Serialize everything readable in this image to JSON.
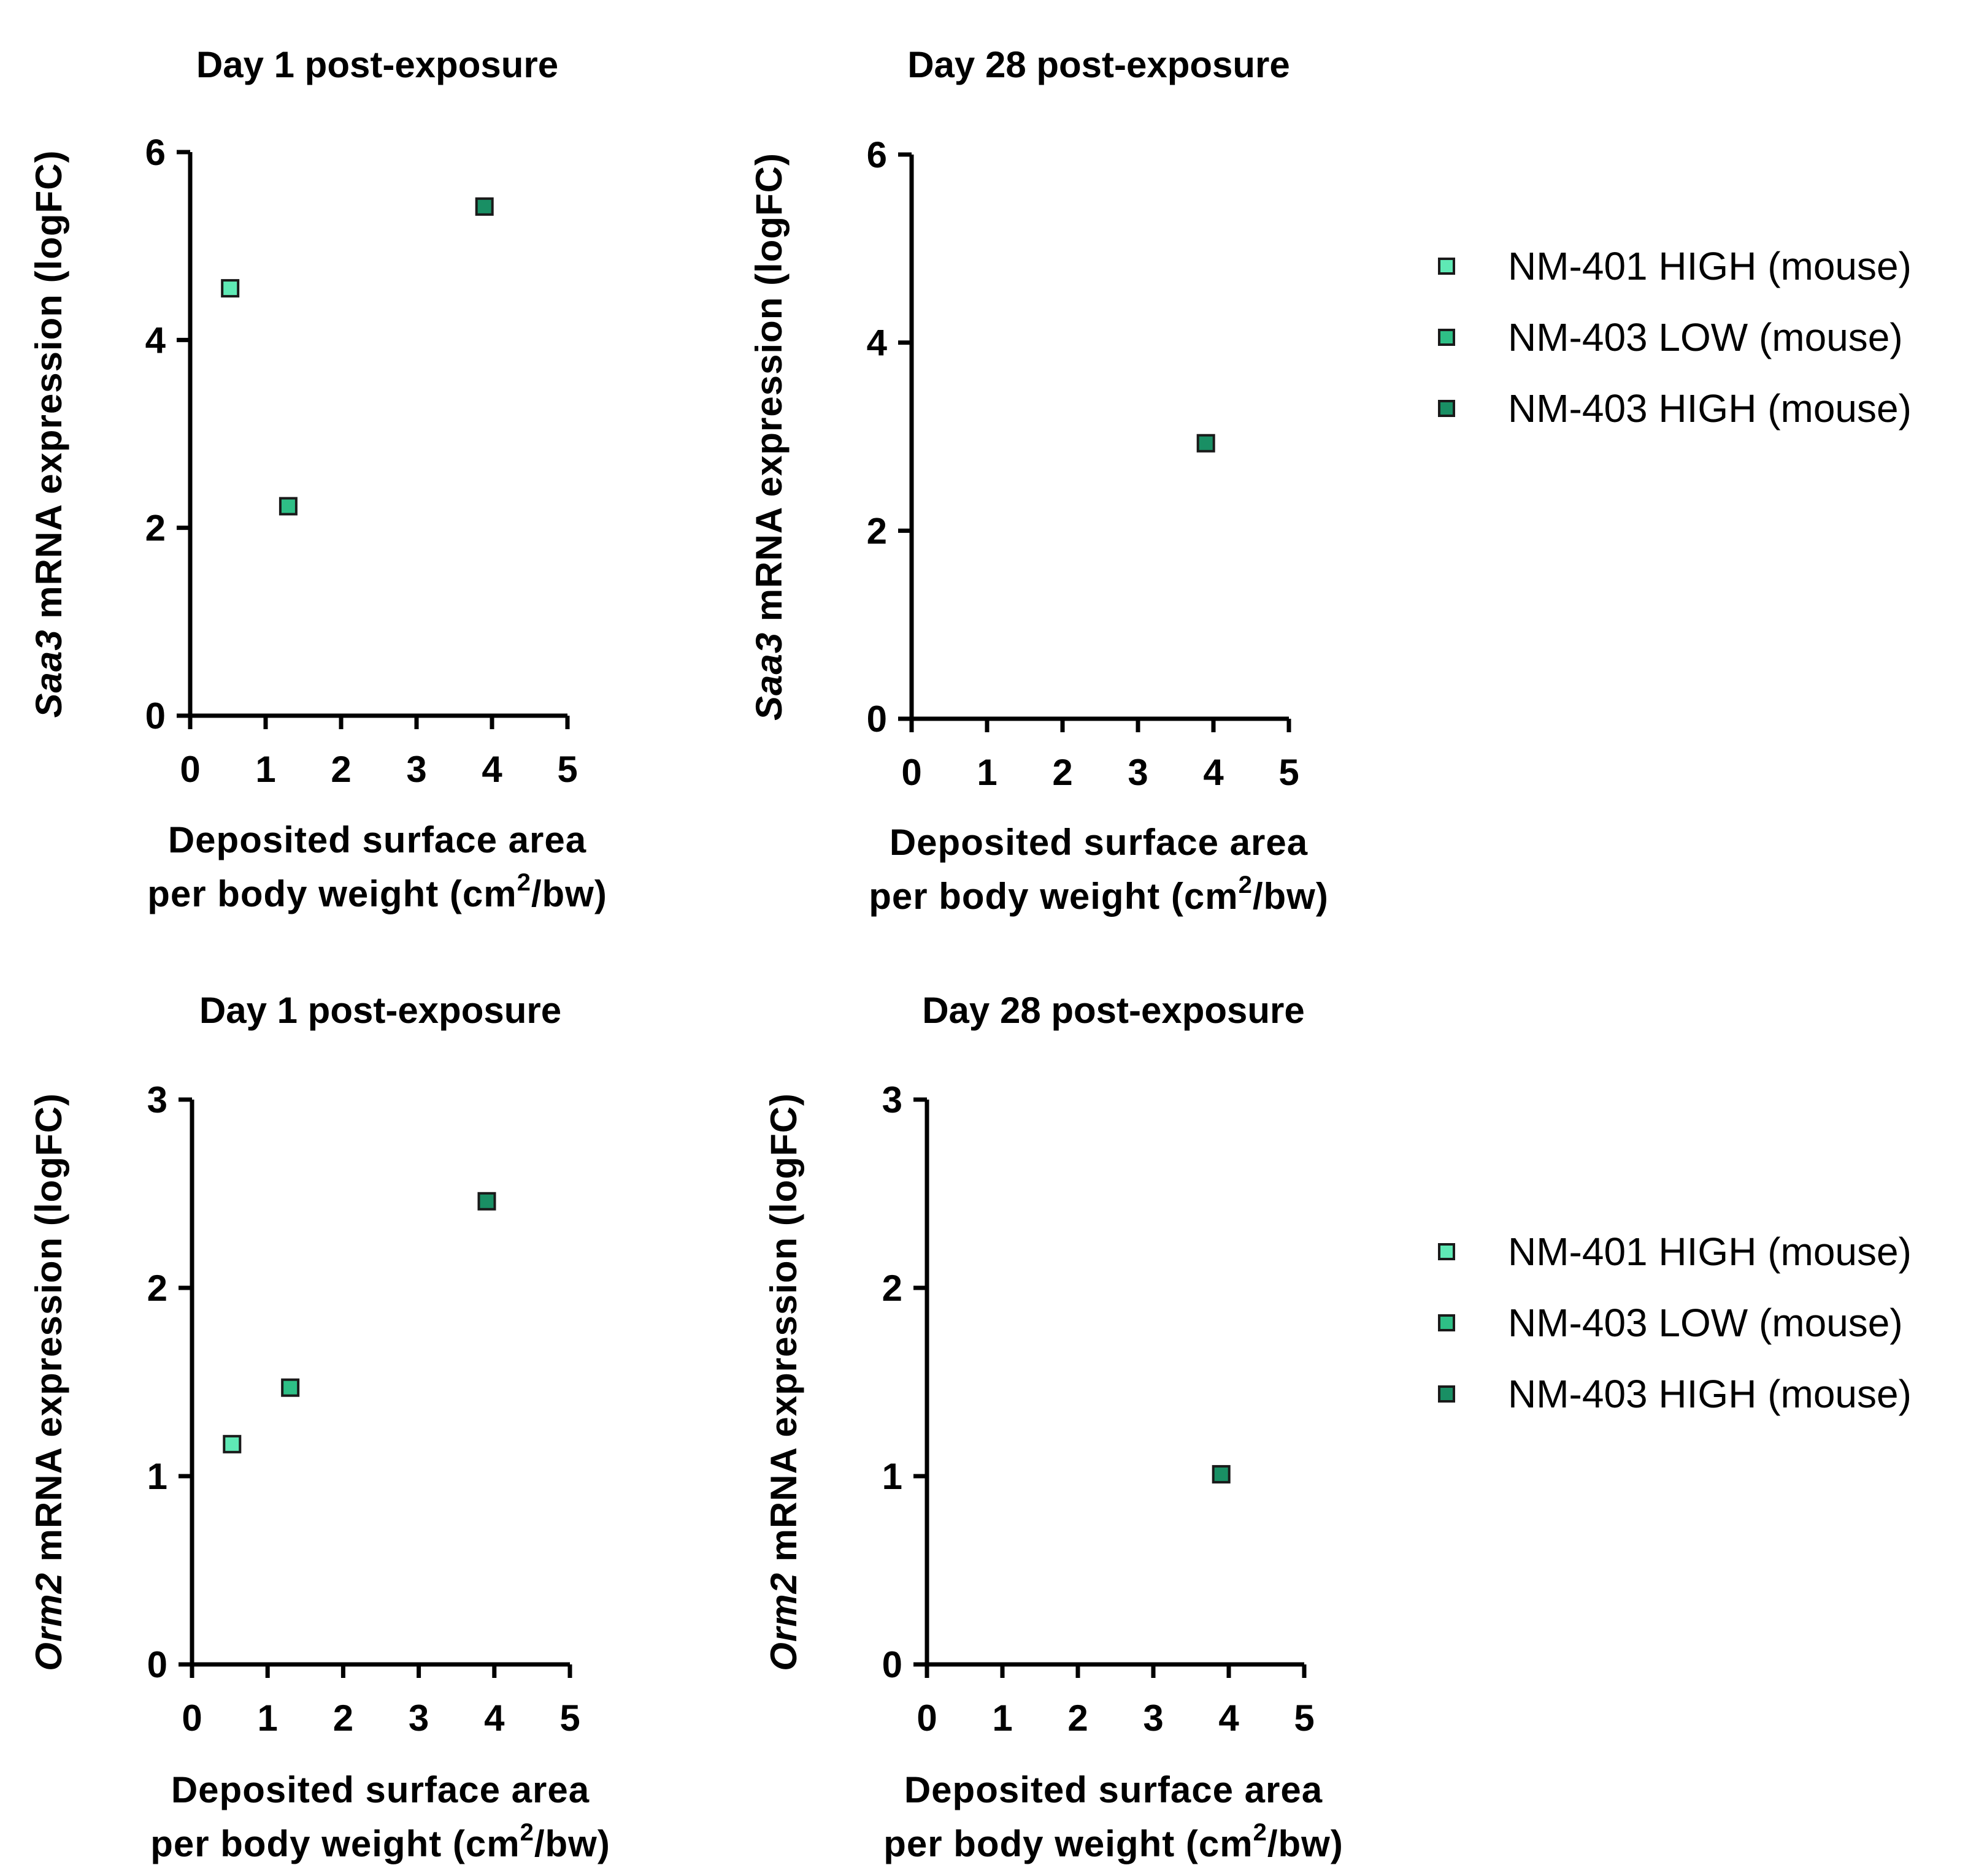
{
  "chart_data": [
    {
      "type": "scatter",
      "title": "Day 1 post-exposure",
      "ylabel_gene": "Saa3",
      "ylabel_rest": " mRNA expression (logFC)",
      "xlabel_line1": "Deposited surface area",
      "xlabel_line2_prefix": "per body weight (cm",
      "xlabel_sup": "2",
      "xlabel_line2_suffix": "/bw)",
      "xlim": [
        0,
        5
      ],
      "ylim": [
        0,
        6
      ],
      "xticks": [
        "0",
        "1",
        "2",
        "3",
        "4",
        "5"
      ],
      "yticks": [
        "0",
        "2",
        "4",
        "6"
      ],
      "series": [
        {
          "name": "NM-401 HIGH (mouse)",
          "points": [
            {
              "x": 0.53,
              "y": 4.55
            }
          ]
        },
        {
          "name": "NM-403 LOW (mouse)",
          "points": [
            {
              "x": 1.3,
              "y": 2.23
            }
          ]
        },
        {
          "name": "NM-403 HIGH (mouse)",
          "points": [
            {
              "x": 3.9,
              "y": 5.42
            }
          ]
        }
      ]
    },
    {
      "type": "scatter",
      "title": "Day 28 post-exposure",
      "ylabel_gene": "Saa3",
      "ylabel_rest": " mRNA expression (logFC)",
      "xlabel_line1": "Deposited surface area",
      "xlabel_line2_prefix": "per body weight (cm",
      "xlabel_sup": "2",
      "xlabel_line2_suffix": "/bw)",
      "xlim": [
        0,
        5
      ],
      "ylim": [
        0,
        6
      ],
      "xticks": [
        "0",
        "1",
        "2",
        "3",
        "4",
        "5"
      ],
      "yticks": [
        "0",
        "2",
        "4",
        "6"
      ],
      "series": [
        {
          "name": "NM-401 HIGH (mouse)",
          "points": []
        },
        {
          "name": "NM-403 LOW (mouse)",
          "points": []
        },
        {
          "name": "NM-403 HIGH (mouse)",
          "points": [
            {
              "x": 3.9,
              "y": 2.93
            }
          ]
        }
      ]
    },
    {
      "type": "scatter",
      "title": "Day 1 post-exposure",
      "ylabel_gene": "Orm2",
      "ylabel_rest": " mRNA expression (logFC)",
      "xlabel_line1": "Deposited surface area",
      "xlabel_line2_prefix": "per body weight (cm",
      "xlabel_sup": "2",
      "xlabel_line2_suffix": "/bw)",
      "xlim": [
        0,
        5
      ],
      "ylim": [
        0,
        3
      ],
      "xticks": [
        "0",
        "1",
        "2",
        "3",
        "4",
        "5"
      ],
      "yticks": [
        "0",
        "1",
        "2",
        "3"
      ],
      "series": [
        {
          "name": "NM-401 HIGH (mouse)",
          "points": [
            {
              "x": 0.53,
              "y": 1.17
            }
          ]
        },
        {
          "name": "NM-403 LOW (mouse)",
          "points": [
            {
              "x": 1.3,
              "y": 1.47
            }
          ]
        },
        {
          "name": "NM-403 HIGH (mouse)",
          "points": [
            {
              "x": 3.9,
              "y": 2.46
            }
          ]
        }
      ]
    },
    {
      "type": "scatter",
      "title": "Day 28 post-exposure",
      "ylabel_gene": "Orm2",
      "ylabel_rest": " mRNA expression (logFC)",
      "xlabel_line1": "Deposited surface area",
      "xlabel_line2_prefix": "per body weight (cm",
      "xlabel_sup": "2",
      "xlabel_line2_suffix": "/bw)",
      "xlim": [
        0,
        5
      ],
      "ylim": [
        0,
        3
      ],
      "xticks": [
        "0",
        "1",
        "2",
        "3",
        "4",
        "5"
      ],
      "yticks": [
        "0",
        "1",
        "2",
        "3"
      ],
      "series": [
        {
          "name": "NM-401 HIGH (mouse)",
          "points": []
        },
        {
          "name": "NM-403 LOW (mouse)",
          "points": []
        },
        {
          "name": "NM-403 HIGH (mouse)",
          "points": [
            {
              "x": 3.9,
              "y": 1.01
            }
          ]
        }
      ]
    }
  ],
  "legends": [
    {
      "entries": [
        {
          "label": "NM-401 HIGH (mouse)",
          "color": "#5fe9b5"
        },
        {
          "label": "NM-403 LOW (mouse)",
          "color": "#2ebf86"
        },
        {
          "label": "NM-403 HIGH (mouse)",
          "color": "#198f64"
        }
      ]
    },
    {
      "entries": [
        {
          "label": "NM-401 HIGH (mouse)",
          "color": "#5fe9b5"
        },
        {
          "label": "NM-403 LOW (mouse)",
          "color": "#2ebf86"
        },
        {
          "label": "NM-403 HIGH (mouse)",
          "color": "#198f64"
        }
      ]
    }
  ]
}
